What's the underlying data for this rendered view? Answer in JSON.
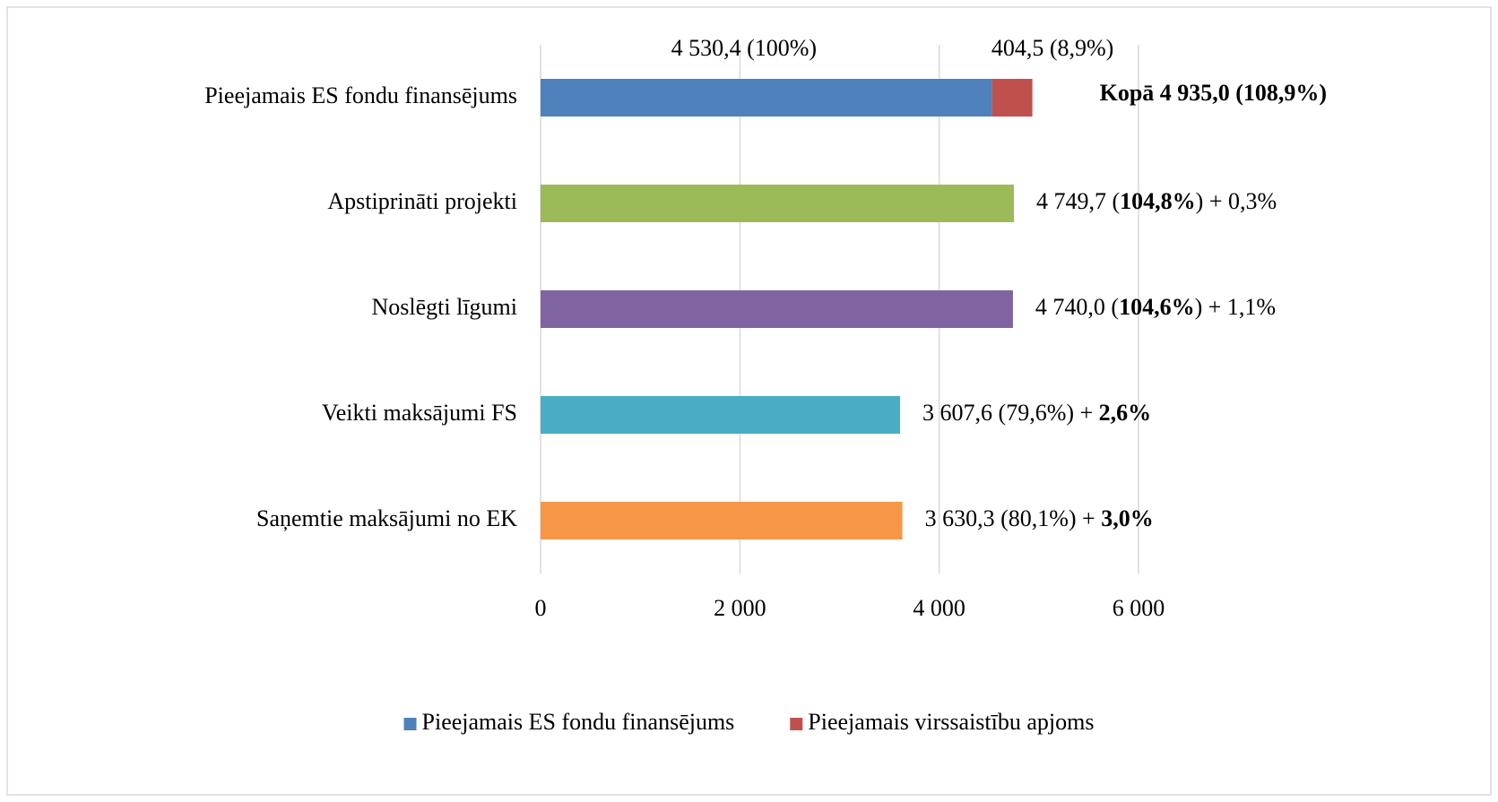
{
  "chart_data": {
    "type": "hbar",
    "categories": [
      "Pieejamais ES fondu finansējums",
      "Apstiprināti projekti",
      "Noslēgti līgumi",
      "Veikti maksājumi FS",
      "Saņemtie maksājumi no EK"
    ],
    "series": [
      {
        "name": "Pieejamais ES fondu finansējums",
        "color": "#4f81bd",
        "point_colors": [
          "#4f81bd",
          "#9bbb59",
          "#8064a2",
          "#4bacc6",
          "#f79646"
        ],
        "values": [
          4530.4,
          4749.7,
          4740.0,
          3607.6,
          3630.3
        ],
        "value_labels": [
          [
            {
              "text": "4 530,4 (100%)",
              "bold": false
            }
          ],
          [
            {
              "text": "4 749,7 (",
              "bold": false
            },
            {
              "text": "104,8%",
              "bold": true
            },
            {
              "text": ") + 0,3%",
              "bold": false
            }
          ],
          [
            {
              "text": "4 740,0 (",
              "bold": false
            },
            {
              "text": "104,6%",
              "bold": true
            },
            {
              "text": ") + 1,1%",
              "bold": false
            }
          ],
          [
            {
              "text": "3 607,6 (79,6%) + ",
              "bold": false
            },
            {
              "text": "2,6%",
              "bold": true
            }
          ],
          [
            {
              "text": "3 630,3 (80,1%) + ",
              "bold": false
            },
            {
              "text": "3,0%",
              "bold": true
            }
          ]
        ]
      },
      {
        "name": "Pieejamais virssaistību apjoms",
        "color": "#c0504d",
        "values": [
          404.5,
          null,
          null,
          null,
          null
        ],
        "value_labels": [
          [
            {
              "text": "404,5 (8,9%)",
              "bold": false
            }
          ],
          null,
          null,
          null,
          null
        ]
      }
    ],
    "annotations": [
      {
        "text": "Kopā 4 935,0 (108,9%)",
        "bold": true,
        "category": 0
      }
    ],
    "xlim": [
      0,
      6000
    ],
    "xticks": [
      0,
      {
        "value": 2000,
        "label": "2 000"
      },
      {
        "value": 4000,
        "label": "4 000"
      },
      {
        "value": 6000,
        "label": "6 000"
      }
    ],
    "grid": true,
    "stacked": true,
    "legend": "bottom"
  }
}
